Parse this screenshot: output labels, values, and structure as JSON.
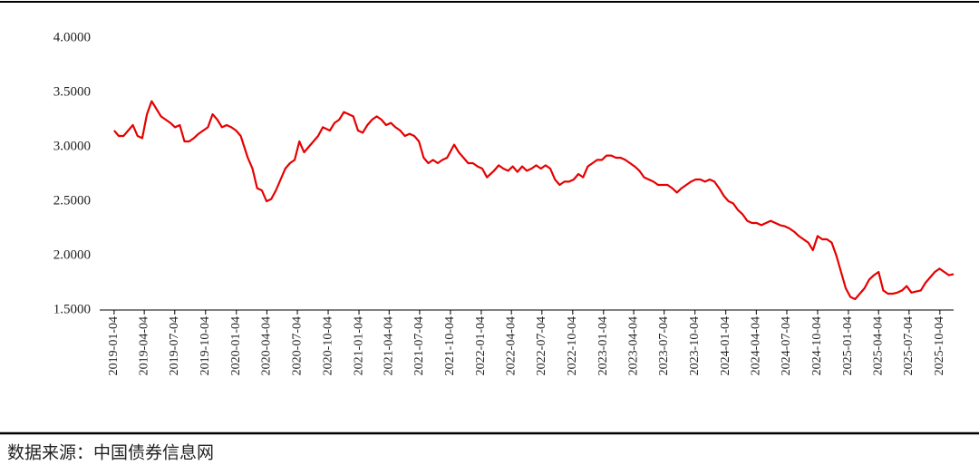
{
  "chart_data": {
    "type": "line",
    "source": "数据来源：中国债券信息网",
    "x": [
      "2019-01-04",
      "2019-01-18",
      "2019-02-01",
      "2019-02-15",
      "2019-03-01",
      "2019-03-15",
      "2019-03-29",
      "2019-04-12",
      "2019-04-26",
      "2019-05-10",
      "2019-05-24",
      "2019-06-07",
      "2019-06-21",
      "2019-07-05",
      "2019-07-19",
      "2019-08-02",
      "2019-08-16",
      "2019-08-30",
      "2019-09-13",
      "2019-09-27",
      "2019-10-11",
      "2019-10-25",
      "2019-11-08",
      "2019-11-22",
      "2019-12-06",
      "2019-12-20",
      "2020-01-03",
      "2020-01-17",
      "2020-02-07",
      "2020-02-21",
      "2020-03-06",
      "2020-03-20",
      "2020-04-03",
      "2020-04-17",
      "2020-05-01",
      "2020-05-15",
      "2020-05-29",
      "2020-06-12",
      "2020-06-26",
      "2020-07-10",
      "2020-07-24",
      "2020-08-07",
      "2020-08-21",
      "2020-09-04",
      "2020-09-18",
      "2020-10-09",
      "2020-10-23",
      "2020-11-06",
      "2020-11-20",
      "2020-12-04",
      "2020-12-18",
      "2021-01-01",
      "2021-01-15",
      "2021-01-29",
      "2021-02-12",
      "2021-02-26",
      "2021-03-12",
      "2021-03-26",
      "2021-04-09",
      "2021-04-23",
      "2021-05-07",
      "2021-05-21",
      "2021-06-04",
      "2021-06-18",
      "2021-07-02",
      "2021-07-16",
      "2021-07-30",
      "2021-08-13",
      "2021-08-27",
      "2021-09-10",
      "2021-09-24",
      "2021-10-15",
      "2021-10-29",
      "2021-11-12",
      "2021-11-26",
      "2021-12-10",
      "2021-12-24",
      "2022-01-07",
      "2022-01-21",
      "2022-02-11",
      "2022-02-25",
      "2022-03-11",
      "2022-03-25",
      "2022-04-08",
      "2022-04-22",
      "2022-05-06",
      "2022-05-20",
      "2022-06-03",
      "2022-06-17",
      "2022-07-01",
      "2022-07-15",
      "2022-07-29",
      "2022-08-12",
      "2022-08-26",
      "2022-09-09",
      "2022-09-23",
      "2022-10-07",
      "2022-10-21",
      "2022-11-04",
      "2022-11-18",
      "2022-12-02",
      "2022-12-16",
      "2022-12-30",
      "2023-01-13",
      "2023-01-27",
      "2023-02-10",
      "2023-02-24",
      "2023-03-10",
      "2023-03-24",
      "2023-04-07",
      "2023-04-21",
      "2023-05-05",
      "2023-05-19",
      "2023-06-02",
      "2023-06-16",
      "2023-06-30",
      "2023-07-14",
      "2023-07-28",
      "2023-08-11",
      "2023-08-25",
      "2023-09-08",
      "2023-09-22",
      "2023-10-06",
      "2023-10-20",
      "2023-11-03",
      "2023-11-17",
      "2023-12-01",
      "2023-12-15",
      "2023-12-29",
      "2024-01-12",
      "2024-01-26",
      "2024-02-09",
      "2024-02-23",
      "2024-03-08",
      "2024-03-22",
      "2024-04-05",
      "2024-04-19",
      "2024-05-03",
      "2024-05-17",
      "2024-05-31",
      "2024-06-14",
      "2024-06-28",
      "2024-07-12",
      "2024-07-26",
      "2024-08-09",
      "2024-08-23",
      "2024-09-06",
      "2024-09-20",
      "2024-10-04",
      "2024-10-18",
      "2024-11-01",
      "2024-11-15",
      "2024-11-29",
      "2024-12-13",
      "2024-12-27",
      "2025-01-10",
      "2025-01-24",
      "2025-02-07",
      "2025-02-21",
      "2025-03-07",
      "2025-03-21",
      "2025-04-04",
      "2025-04-18",
      "2025-05-02",
      "2025-05-16",
      "2025-05-30",
      "2025-06-13",
      "2025-06-27",
      "2025-07-11",
      "2025-07-25",
      "2025-08-08",
      "2025-08-22",
      "2025-09-05",
      "2025-09-19",
      "2025-10-03",
      "2025-10-17",
      "2025-10-31",
      "2025-11-14"
    ],
    "values": [
      3.15,
      3.1,
      3.1,
      3.15,
      3.2,
      3.1,
      3.08,
      3.3,
      3.42,
      3.35,
      3.28,
      3.25,
      3.22,
      3.18,
      3.2,
      3.05,
      3.05,
      3.08,
      3.12,
      3.15,
      3.18,
      3.3,
      3.25,
      3.18,
      3.2,
      3.18,
      3.15,
      3.1,
      2.9,
      2.8,
      2.62,
      2.6,
      2.5,
      2.52,
      2.6,
      2.7,
      2.8,
      2.85,
      2.88,
      3.05,
      2.95,
      3.0,
      3.05,
      3.1,
      3.18,
      3.15,
      3.22,
      3.25,
      3.32,
      3.3,
      3.28,
      3.15,
      3.13,
      3.2,
      3.25,
      3.28,
      3.25,
      3.2,
      3.22,
      3.18,
      3.15,
      3.1,
      3.12,
      3.1,
      3.05,
      2.9,
      2.85,
      2.88,
      2.85,
      2.88,
      2.9,
      3.02,
      2.95,
      2.9,
      2.85,
      2.85,
      2.82,
      2.8,
      2.72,
      2.78,
      2.83,
      2.8,
      2.78,
      2.82,
      2.77,
      2.82,
      2.78,
      2.8,
      2.83,
      2.8,
      2.83,
      2.8,
      2.7,
      2.65,
      2.68,
      2.68,
      2.7,
      2.75,
      2.72,
      2.82,
      2.85,
      2.88,
      2.88,
      2.92,
      2.92,
      2.9,
      2.9,
      2.88,
      2.85,
      2.82,
      2.78,
      2.72,
      2.7,
      2.68,
      2.65,
      2.65,
      2.65,
      2.62,
      2.58,
      2.62,
      2.65,
      2.68,
      2.7,
      2.7,
      2.68,
      2.7,
      2.68,
      2.62,
      2.55,
      2.5,
      2.48,
      2.42,
      2.38,
      2.32,
      2.3,
      2.3,
      2.28,
      2.3,
      2.32,
      2.3,
      2.28,
      2.27,
      2.25,
      2.22,
      2.18,
      2.15,
      2.12,
      2.05,
      2.18,
      2.15,
      2.15,
      2.12,
      2.0,
      1.85,
      1.7,
      1.62,
      1.6,
      1.65,
      1.7,
      1.78,
      1.82,
      1.85,
      1.68,
      1.65,
      1.65,
      1.66,
      1.68,
      1.72,
      1.66,
      1.67,
      1.68,
      1.75,
      1.8,
      1.85,
      1.88,
      1.85,
      1.82,
      1.83
    ],
    "color": "#e60000",
    "xlim": [
      "2018-11-22",
      "2025-11-14"
    ],
    "xticks": [
      "2019-01-04",
      "2019-04-04",
      "2019-07-04",
      "2019-10-04",
      "2020-01-04",
      "2020-04-04",
      "2020-07-04",
      "2020-10-04",
      "2021-01-04",
      "2021-04-04",
      "2021-07-04",
      "2021-10-04",
      "2022-01-04",
      "2022-04-04",
      "2022-07-04",
      "2022-10-04",
      "2023-01-04",
      "2023-04-04",
      "2023-07-04",
      "2023-10-04",
      "2024-01-04",
      "2024-04-04",
      "2024-07-04",
      "2024-10-04",
      "2025-01-04",
      "2025-04-04",
      "2025-07-04",
      "2025-10-04"
    ],
    "ylim": [
      1.5,
      4.0
    ],
    "yticks": [
      {
        "value": 1.5,
        "label": "1.5000"
      },
      {
        "value": 2.0,
        "label": "2.0000"
      },
      {
        "value": 2.5,
        "label": "2.5000"
      },
      {
        "value": 3.0,
        "label": "3.0000"
      },
      {
        "value": 3.5,
        "label": "3.5000"
      },
      {
        "value": 4.0,
        "label": "4.0000"
      }
    ]
  }
}
